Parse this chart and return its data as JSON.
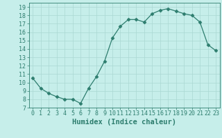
{
  "x": [
    0,
    1,
    2,
    3,
    4,
    5,
    6,
    7,
    8,
    9,
    10,
    11,
    12,
    13,
    14,
    15,
    16,
    17,
    18,
    19,
    20,
    21,
    22,
    23
  ],
  "y": [
    10.5,
    9.3,
    8.7,
    8.3,
    8.0,
    8.0,
    7.5,
    9.3,
    10.7,
    12.5,
    15.3,
    16.7,
    17.5,
    17.5,
    17.2,
    18.2,
    18.6,
    18.8,
    18.5,
    18.2,
    18.0,
    17.2,
    14.5,
    13.8
  ],
  "line_color": "#2d7d6e",
  "marker": "D",
  "marker_size": 2.5,
  "bg_color": "#c6eeea",
  "grid_color": "#aad8d2",
  "tick_color": "#2d7d6e",
  "xlabel": "Humidex (Indice chaleur)",
  "xlim": [
    -0.5,
    23.5
  ],
  "ylim": [
    7,
    19.5
  ],
  "yticks": [
    7,
    8,
    9,
    10,
    11,
    12,
    13,
    14,
    15,
    16,
    17,
    18,
    19
  ],
  "xtick_labels": [
    "0",
    "1",
    "2",
    "3",
    "4",
    "5",
    "6",
    "7",
    "8",
    "9",
    "10",
    "11",
    "12",
    "13",
    "14",
    "15",
    "16",
    "17",
    "18",
    "19",
    "20",
    "21",
    "22",
    "23"
  ],
  "font_color": "#2d7d6e",
  "xlabel_fontsize": 7.5,
  "tick_fontsize": 6.0
}
